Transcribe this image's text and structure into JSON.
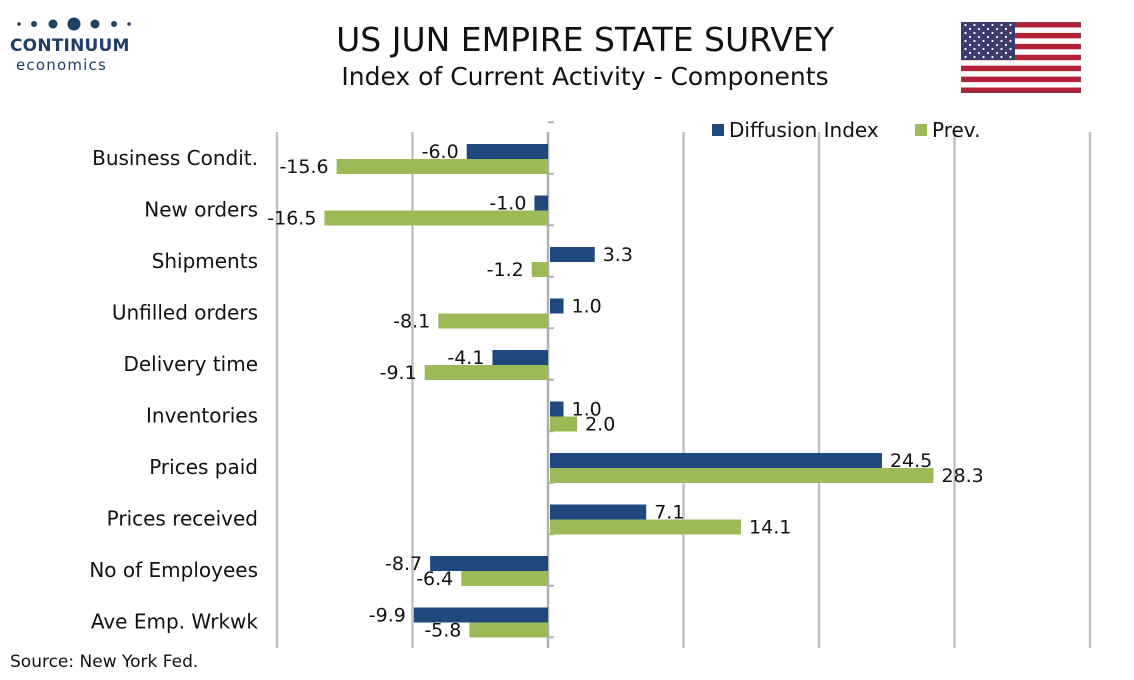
{
  "logo": {
    "name": "CONTINUUM",
    "sub": "economics"
  },
  "header": {
    "title": "US JUN EMPIRE STATE SURVEY",
    "subtitle": "Index of Current Activity - Components"
  },
  "source": "Source: New York Fed.",
  "colors": {
    "series_current": "#1f497d",
    "series_prev": "#9bbb59",
    "grid": "#c0c0c0",
    "logo": "#1f3f66"
  },
  "flag_icon": "us-flag-icon",
  "chart_data": {
    "type": "bar",
    "orientation": "horizontal",
    "categories": [
      "Business Condit.",
      "New orders",
      "Shipments",
      "Unfilled orders",
      "Delivery time",
      "Inventories",
      "Prices paid",
      "Prices received",
      "No of Employees",
      "Ave Emp. Wrkwk"
    ],
    "series": [
      {
        "name": "Diffusion Index",
        "values": [
          -6.0,
          -1.0,
          3.3,
          1.0,
          -4.1,
          1.0,
          24.5,
          7.1,
          -8.7,
          -9.9
        ]
      },
      {
        "name": "Prev.",
        "values": [
          -15.6,
          -16.5,
          -1.2,
          -8.1,
          -9.1,
          2.0,
          28.3,
          14.1,
          -6.4,
          -5.8
        ]
      }
    ],
    "xlim": [
      -20,
      40
    ],
    "grid": true,
    "legend": "top-right"
  }
}
